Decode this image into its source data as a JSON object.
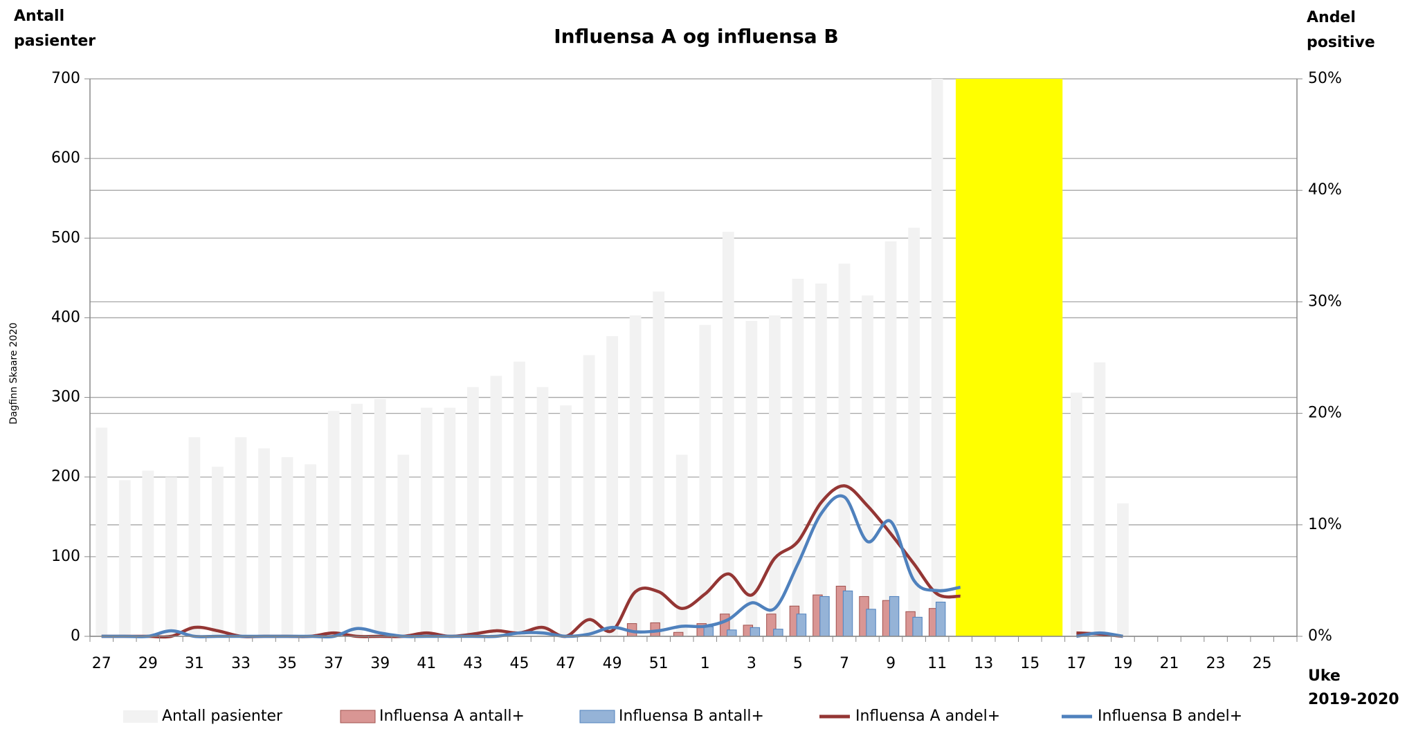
{
  "chart_data": {
    "type": "bar",
    "title": "Influensa A og influensa B",
    "y_label_lines": [
      "Antall",
      "pasienter"
    ],
    "y2_label_lines": [
      "Andel",
      "positive"
    ],
    "x_label_lines": [
      "Uke",
      "2019-2020"
    ],
    "watermark": "Dagfinn Skaare 2020",
    "categories": [
      "27",
      null,
      "29",
      null,
      "31",
      null,
      "33",
      null,
      "35",
      null,
      "37",
      null,
      "39",
      null,
      "41",
      null,
      "43",
      null,
      "45",
      null,
      "47",
      null,
      "49",
      null,
      "51",
      null,
      "1",
      null,
      "3",
      null,
      "5",
      null,
      "7",
      null,
      "9",
      null,
      "11",
      null,
      "13",
      null,
      "15",
      null,
      "17",
      null,
      "19",
      null,
      "21",
      null,
      "23",
      null,
      "25",
      null
    ],
    "ylim": [
      0,
      700
    ],
    "yticks": [
      0,
      100,
      200,
      300,
      400,
      500,
      600,
      700
    ],
    "y2lim": [
      0,
      50
    ],
    "y2ticks": [
      {
        "value": 0,
        "label": "0%"
      },
      {
        "value": 10,
        "label": "10%"
      },
      {
        "value": 20,
        "label": "20%"
      },
      {
        "value": 30,
        "label": "30%"
      },
      {
        "value": 40,
        "label": "40%"
      },
      {
        "value": 50,
        "label": "50%"
      }
    ],
    "grid": true,
    "series": [
      {
        "name": "Antall pasienter",
        "type": "bar",
        "color": "#f2f2f2",
        "values": [
          262,
          196,
          208,
          200,
          250,
          213,
          250,
          236,
          225,
          216,
          283,
          292,
          298,
          228,
          287,
          287,
          313,
          327,
          345,
          313,
          290,
          353,
          377,
          403,
          433,
          228,
          391,
          508,
          396,
          403,
          449,
          443,
          468,
          428,
          496,
          513,
          700,
          null,
          null,
          null,
          null,
          null,
          306,
          344,
          167,
          null,
          null,
          null,
          null,
          null,
          null,
          null
        ]
      },
      {
        "name": "Influensa A antall+",
        "type": "bar",
        "color": "#d99694",
        "values": [
          0,
          0,
          0,
          0,
          0,
          0,
          0,
          0,
          0,
          0,
          0,
          0,
          0,
          0,
          0,
          0,
          0,
          0,
          0,
          0,
          0,
          0,
          0,
          16,
          17,
          5,
          16,
          28,
          14,
          28,
          38,
          52,
          63,
          50,
          45,
          31,
          35,
          null,
          null,
          null,
          null,
          null,
          0,
          0,
          0,
          null,
          null,
          null,
          null,
          null,
          null,
          null
        ]
      },
      {
        "name": "Influensa B antall+",
        "type": "bar",
        "color": "#95b3d7",
        "values": [
          0,
          0,
          0,
          0,
          0,
          0,
          0,
          0,
          0,
          0,
          0,
          0,
          0,
          0,
          0,
          0,
          0,
          0,
          0,
          0,
          0,
          0,
          0,
          0,
          0,
          0,
          12,
          8,
          11,
          9,
          28,
          50,
          57,
          34,
          50,
          24,
          43,
          null,
          null,
          null,
          null,
          null,
          0,
          0,
          0,
          null,
          null,
          null,
          null,
          null,
          null,
          null
        ]
      },
      {
        "name": "Influensa A andel+",
        "type": "line",
        "axis": "y2",
        "color": "#943634",
        "values": [
          0,
          0,
          0,
          0,
          0.8,
          0.5,
          0,
          0,
          0,
          0,
          0.3,
          0,
          0,
          0,
          0.3,
          0,
          0.2,
          0.5,
          0.3,
          0.8,
          0,
          1.5,
          0.5,
          4,
          4,
          2.5,
          3.8,
          5.6,
          3.7,
          7,
          8.5,
          12,
          13.5,
          11.7,
          9.2,
          6.5,
          3.8,
          3.6,
          null,
          null,
          null,
          null,
          0.3,
          0.2,
          0,
          null,
          null,
          null,
          null,
          null,
          null,
          null
        ]
      },
      {
        "name": "Influensa B andel+",
        "type": "line",
        "axis": "y2",
        "color": "#4f81bd",
        "values": [
          0,
          0,
          0,
          0.5,
          0,
          0,
          0,
          0,
          0,
          0,
          0,
          0.7,
          0.3,
          0,
          0,
          0,
          0,
          0,
          0.3,
          0.3,
          0,
          0.2,
          0.8,
          0.4,
          0.5,
          0.9,
          0.9,
          1.5,
          3,
          2.5,
          6.5,
          11,
          12.5,
          8.5,
          10.3,
          5,
          4.1,
          4.4,
          null,
          null,
          null,
          null,
          0,
          0.3,
          0,
          null,
          null,
          null,
          null,
          null,
          null,
          null
        ]
      }
    ]
  }
}
